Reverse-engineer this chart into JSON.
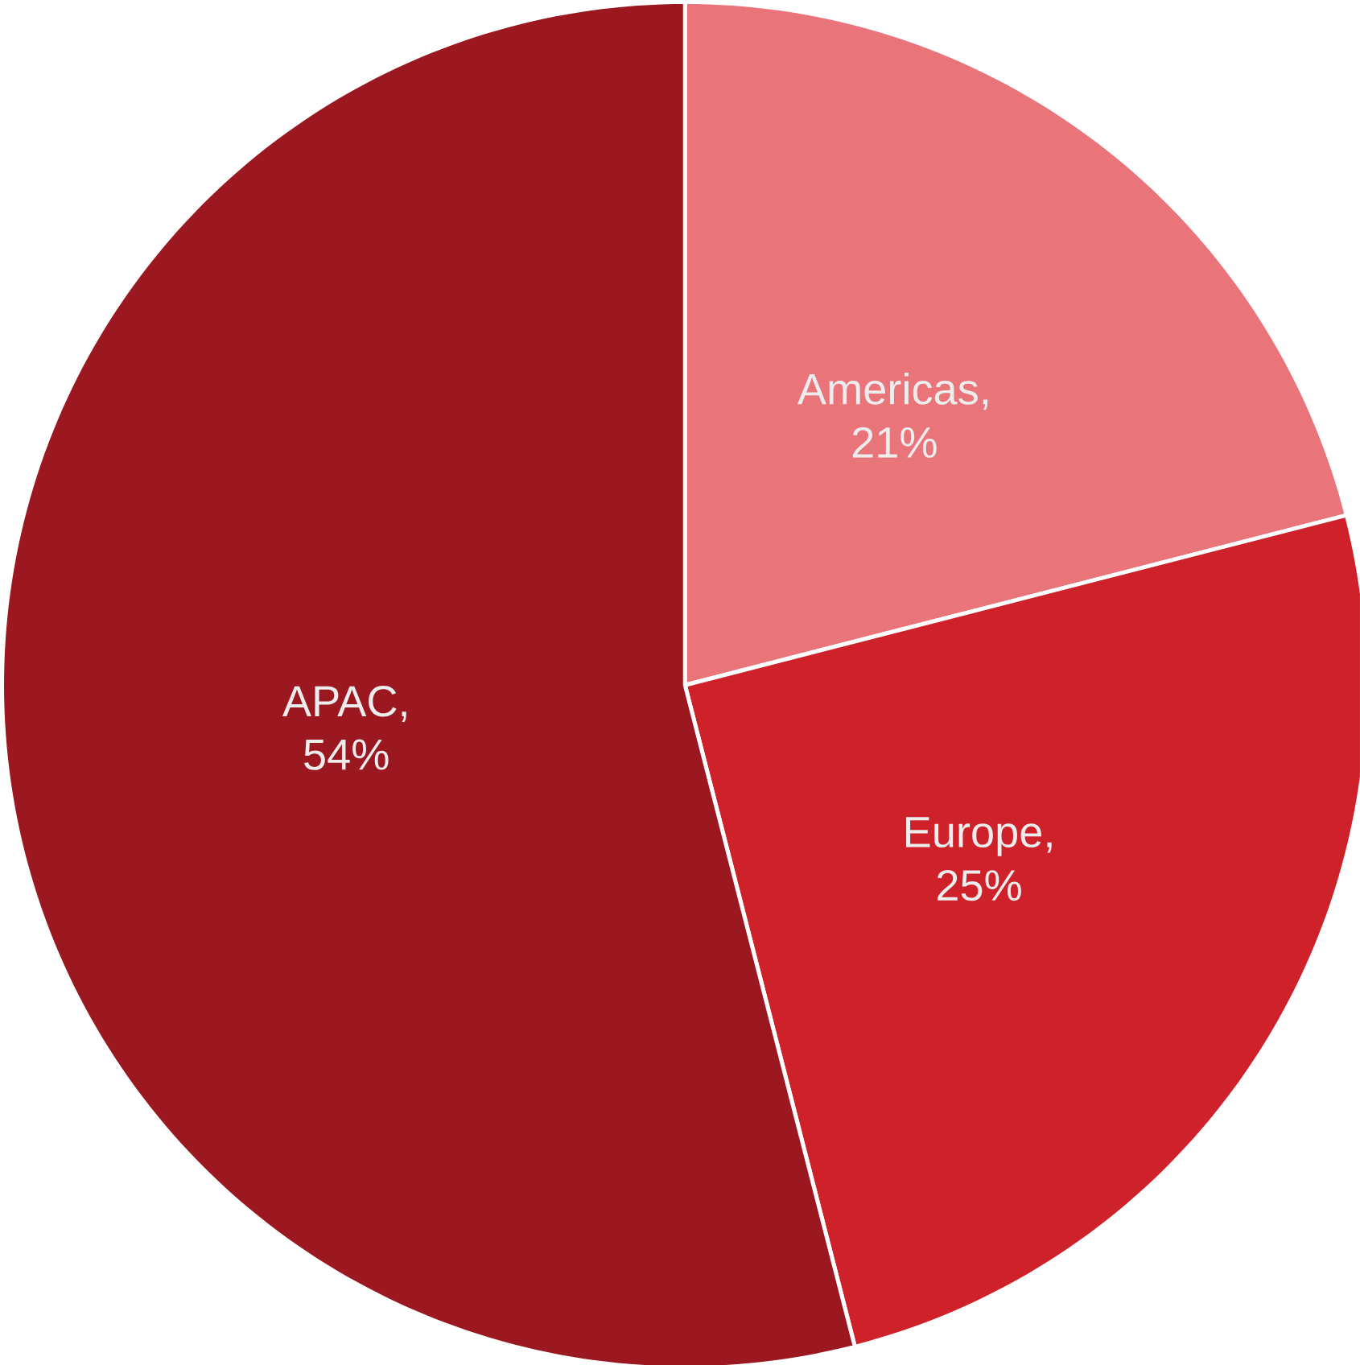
{
  "chart_data": {
    "type": "pie",
    "categories": [
      "Americas",
      "Europe",
      "APAC"
    ],
    "values": [
      21,
      25,
      54
    ],
    "value_labels": [
      ", 21%",
      ", 25%",
      ", 54%"
    ],
    "colors": [
      "#e9747a",
      "#cf2129",
      "#9b1820"
    ]
  }
}
